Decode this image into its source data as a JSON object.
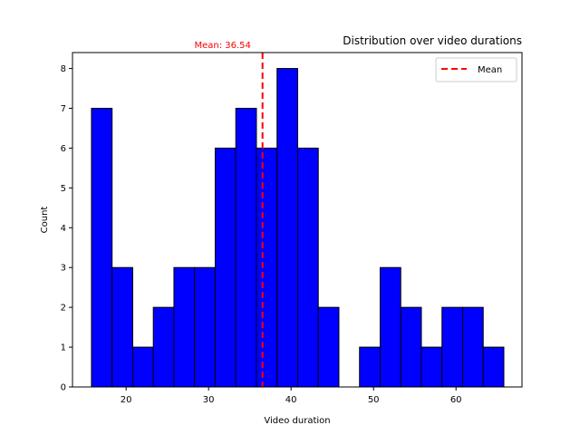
{
  "chart_data": {
    "type": "bar",
    "title": "Distribution over video durations",
    "xlabel": "Video duration",
    "ylabel": "Count",
    "xlim": [
      13.5,
      68.0
    ],
    "ylim": [
      0,
      8.4
    ],
    "x_ticks": [
      20,
      30,
      40,
      50,
      60
    ],
    "y_ticks": [
      0,
      1,
      2,
      3,
      4,
      5,
      6,
      7,
      8
    ],
    "bin_edges": [
      15.8,
      18.3,
      20.8,
      23.3,
      25.8,
      28.3,
      30.8,
      33.3,
      35.8,
      38.3,
      40.8,
      43.3,
      45.8,
      48.3,
      50.8,
      53.3,
      55.8,
      58.3,
      60.8,
      63.3,
      65.8
    ],
    "values": [
      7,
      3,
      1,
      2,
      3,
      3,
      6,
      7,
      6,
      8,
      6,
      2,
      0,
      1,
      3,
      2,
      1,
      2,
      2,
      1
    ],
    "bar_color": "#0000ff",
    "bar_edge_color": "#000000",
    "mean": {
      "value": 36.54,
      "label": "Mean: 36.54",
      "legend_label": "Mean",
      "color": "#ff0000"
    },
    "legend": {
      "placement": "top-right",
      "entries": [
        "Mean"
      ]
    },
    "grid": false
  }
}
